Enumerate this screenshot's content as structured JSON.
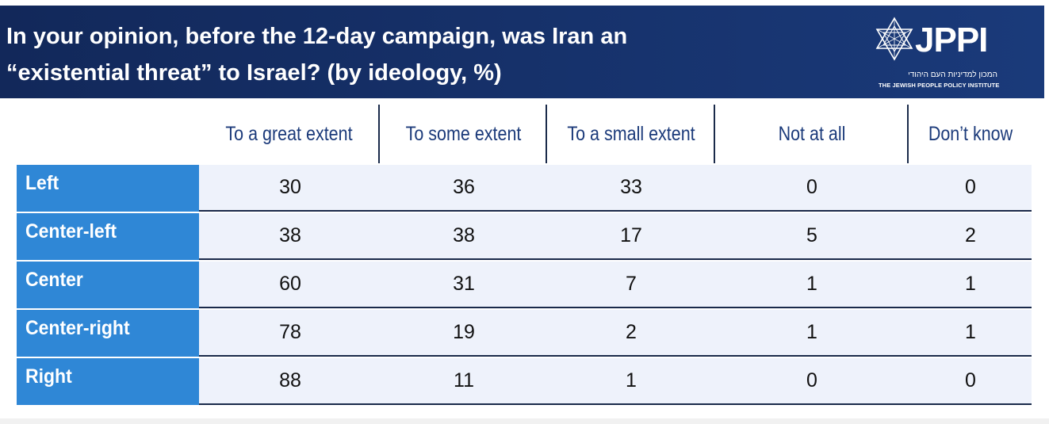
{
  "title": {
    "line1": "In your opinion, before the 12-day campaign, was Iran an",
    "line2": "“existential threat” to Israel?  (by ideology, %)"
  },
  "logo": {
    "name": "JPPI",
    "hebrew": "המכון למדיניות העם היהודי",
    "english": "THE JEWISH PEOPLE POLICY INSTITUTE"
  },
  "colors": {
    "header_bg": "#12285a",
    "row_label_bg": "#2f87d6",
    "row_body_bg": "#eef2fb",
    "column_header_text": "#1b3a7a"
  },
  "chart_data": {
    "type": "table",
    "title": "In your opinion, before the 12-day campaign, was Iran an “existential threat” to Israel?  (by ideology, %)",
    "columns": [
      "To a great extent",
      "To some extent",
      "To a small extent",
      "Not at all",
      "Don’t know"
    ],
    "rows": [
      {
        "label": "Left",
        "values": [
          30,
          36,
          33,
          0,
          0
        ]
      },
      {
        "label": "Center-left",
        "values": [
          38,
          38,
          17,
          5,
          2
        ]
      },
      {
        "label": "Center",
        "values": [
          60,
          31,
          7,
          1,
          1
        ]
      },
      {
        "label": "Center-right",
        "values": [
          78,
          19,
          2,
          1,
          1
        ]
      },
      {
        "label": "Right",
        "values": [
          88,
          11,
          1,
          0,
          0
        ]
      }
    ]
  }
}
